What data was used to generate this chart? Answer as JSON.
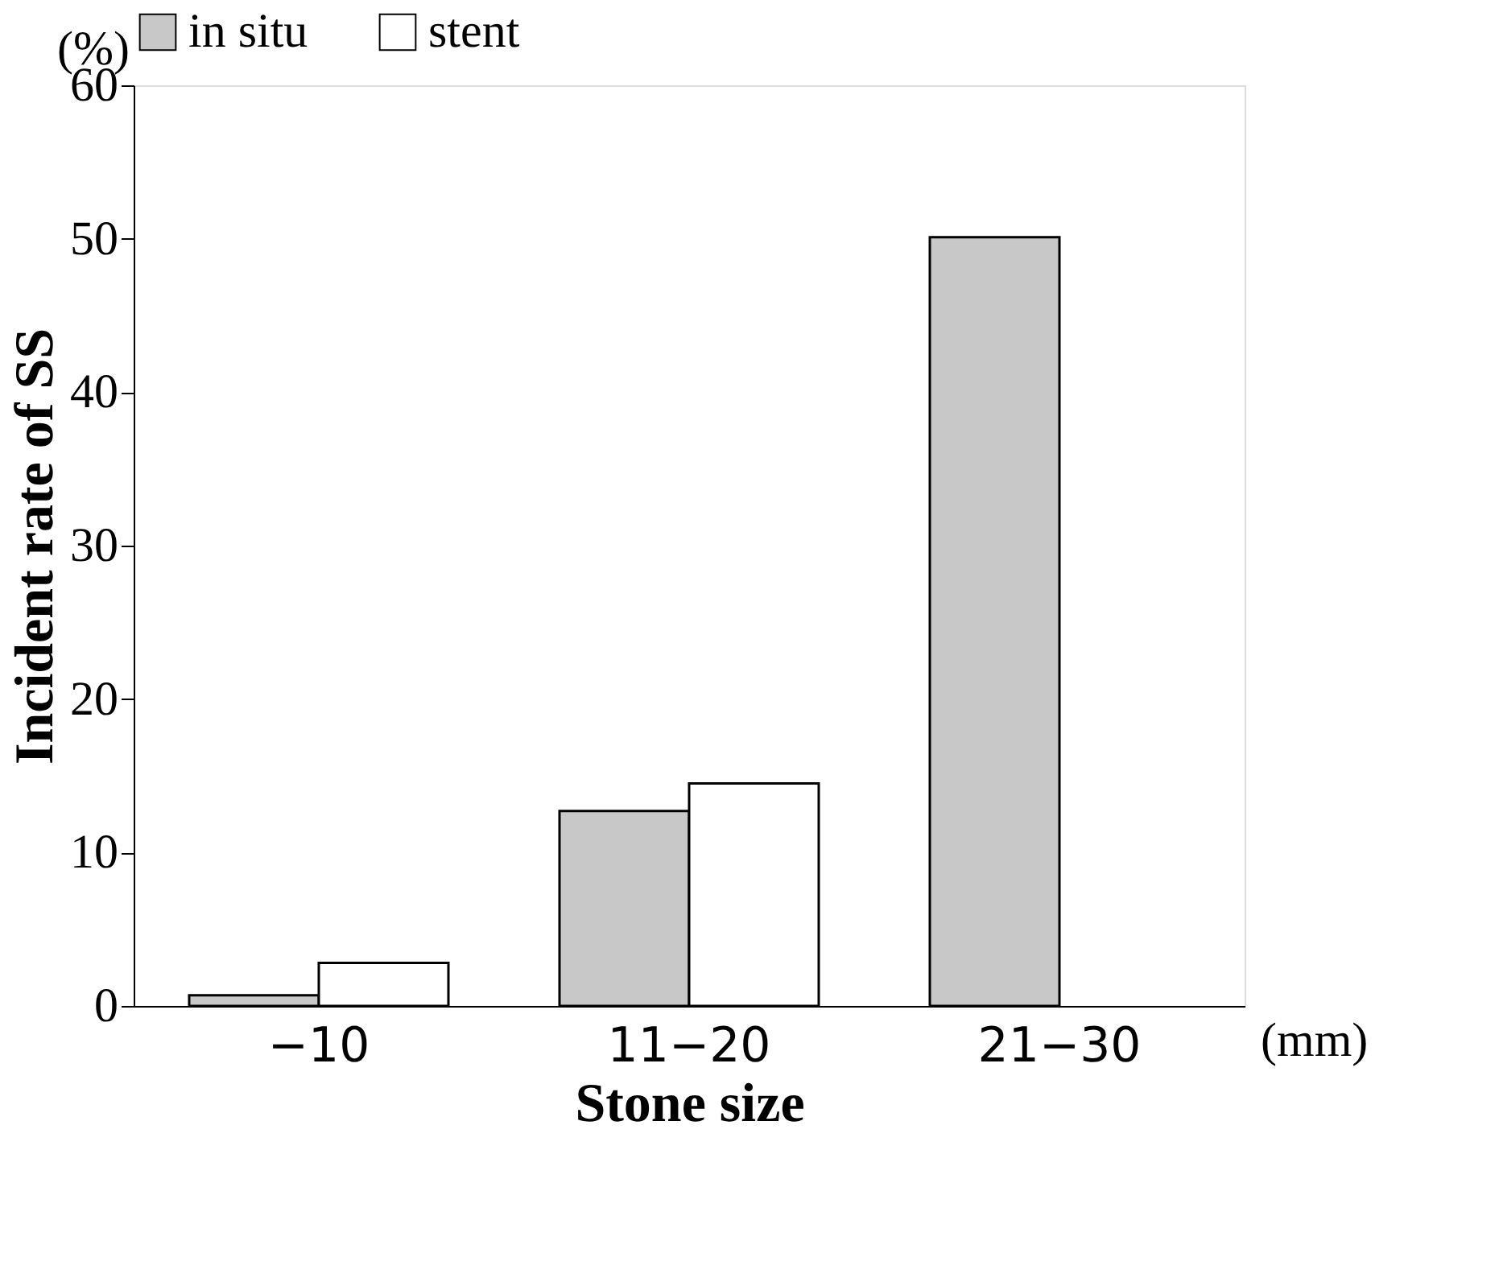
{
  "chart_data": {
    "type": "bar",
    "xlabel": "Stone size",
    "ylabel": "Incident rate of SS",
    "categories": [
      "−10",
      "11−20",
      "21−30"
    ],
    "series": [
      {
        "name": "in situ",
        "color": "#c8c8c8",
        "values": [
          0.7,
          12.7,
          50.1
        ]
      },
      {
        "name": "stent",
        "color": "#ffffff",
        "values": [
          2.8,
          14.5,
          null
        ]
      }
    ],
    "ylim": [
      0,
      60
    ],
    "yticks": [
      0,
      10,
      20,
      30,
      40,
      50,
      60
    ],
    "grid": false,
    "legend": "top",
    "annotations": [
      "(%)",
      "(mm)"
    ]
  }
}
